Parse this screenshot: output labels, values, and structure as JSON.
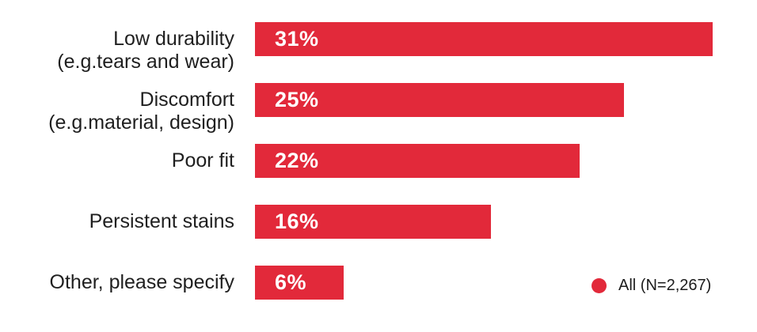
{
  "chart_data": {
    "type": "bar",
    "orientation": "horizontal",
    "title": "",
    "xlabel": "",
    "ylabel": "",
    "xlim": [
      0,
      34
    ],
    "grid": false,
    "categories": [
      "Low durability\n(e.g.tears and wear)",
      "Discomfort\n(e.g.material, design)",
      "Poor fit",
      "Persistent stains",
      "Other, please specify"
    ],
    "values": [
      31,
      25,
      22,
      16,
      6
    ],
    "value_labels": [
      "31%",
      "25%",
      "22%",
      "16%",
      "6%"
    ],
    "unit": "%",
    "bar_color": "#E2293A",
    "value_label_color": "#FFFFFF",
    "category_label_color": "#1F1F1F",
    "legend": {
      "label": "All (N=2,267)",
      "marker": "circle-icon",
      "marker_color": "#E2293A",
      "position": "bottom-right"
    }
  }
}
